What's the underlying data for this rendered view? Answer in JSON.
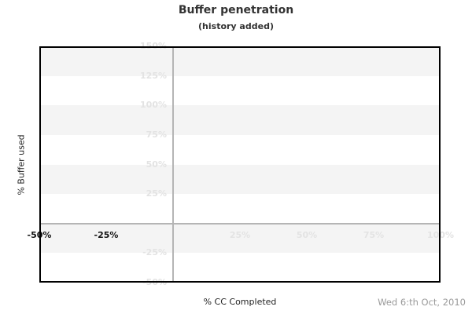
{
  "header": {
    "title": "Buffer penetration",
    "subtitle": "(history added)"
  },
  "footer": {
    "x_axis_title": "% CC Completed",
    "date": "Wed 6:th Oct, 2010"
  },
  "y_axis_title": "% Buffer used",
  "chart_data": {
    "type": "scatter",
    "title": "Buffer penetration",
    "subtitle": "(history added)",
    "xlabel": "% CC Completed",
    "ylabel": "% Buffer used",
    "xlim": [
      -50,
      100
    ],
    "ylim": [
      -50,
      150
    ],
    "x_ticks": [
      {
        "value": -50,
        "label": "-50%",
        "strong": true
      },
      {
        "value": -25,
        "label": "-25%",
        "strong": true
      },
      {
        "value": 25,
        "label": "25%",
        "strong": false
      },
      {
        "value": 50,
        "label": "50%",
        "strong": false
      },
      {
        "value": 75,
        "label": "75%",
        "strong": false
      },
      {
        "value": 100,
        "label": "100%",
        "strong": false
      }
    ],
    "y_ticks": [
      {
        "value": 150,
        "label": "150%"
      },
      {
        "value": 125,
        "label": "125%"
      },
      {
        "value": 100,
        "label": "100%"
      },
      {
        "value": 75,
        "label": "75%"
      },
      {
        "value": 50,
        "label": "50%"
      },
      {
        "value": 25,
        "label": "25%"
      },
      {
        "value": -25,
        "label": "-25%"
      },
      {
        "value": -50,
        "label": "-50%"
      }
    ],
    "series": [],
    "grid": {
      "banding": "horizontal, 25% steps, alternating starting gray at top",
      "zero_lines": true,
      "legend": "none"
    },
    "annotations": {
      "date": "Wed 6:th Oct, 2010"
    },
    "colors": {
      "band_gray": "#f4f4f4",
      "faint_label": "#e3e3e3",
      "strong_label": "#111111",
      "zero_line": "#b5b5b5",
      "plot_border": "#000000",
      "title_text": "#333333",
      "date_text": "#9a9a9a"
    }
  }
}
